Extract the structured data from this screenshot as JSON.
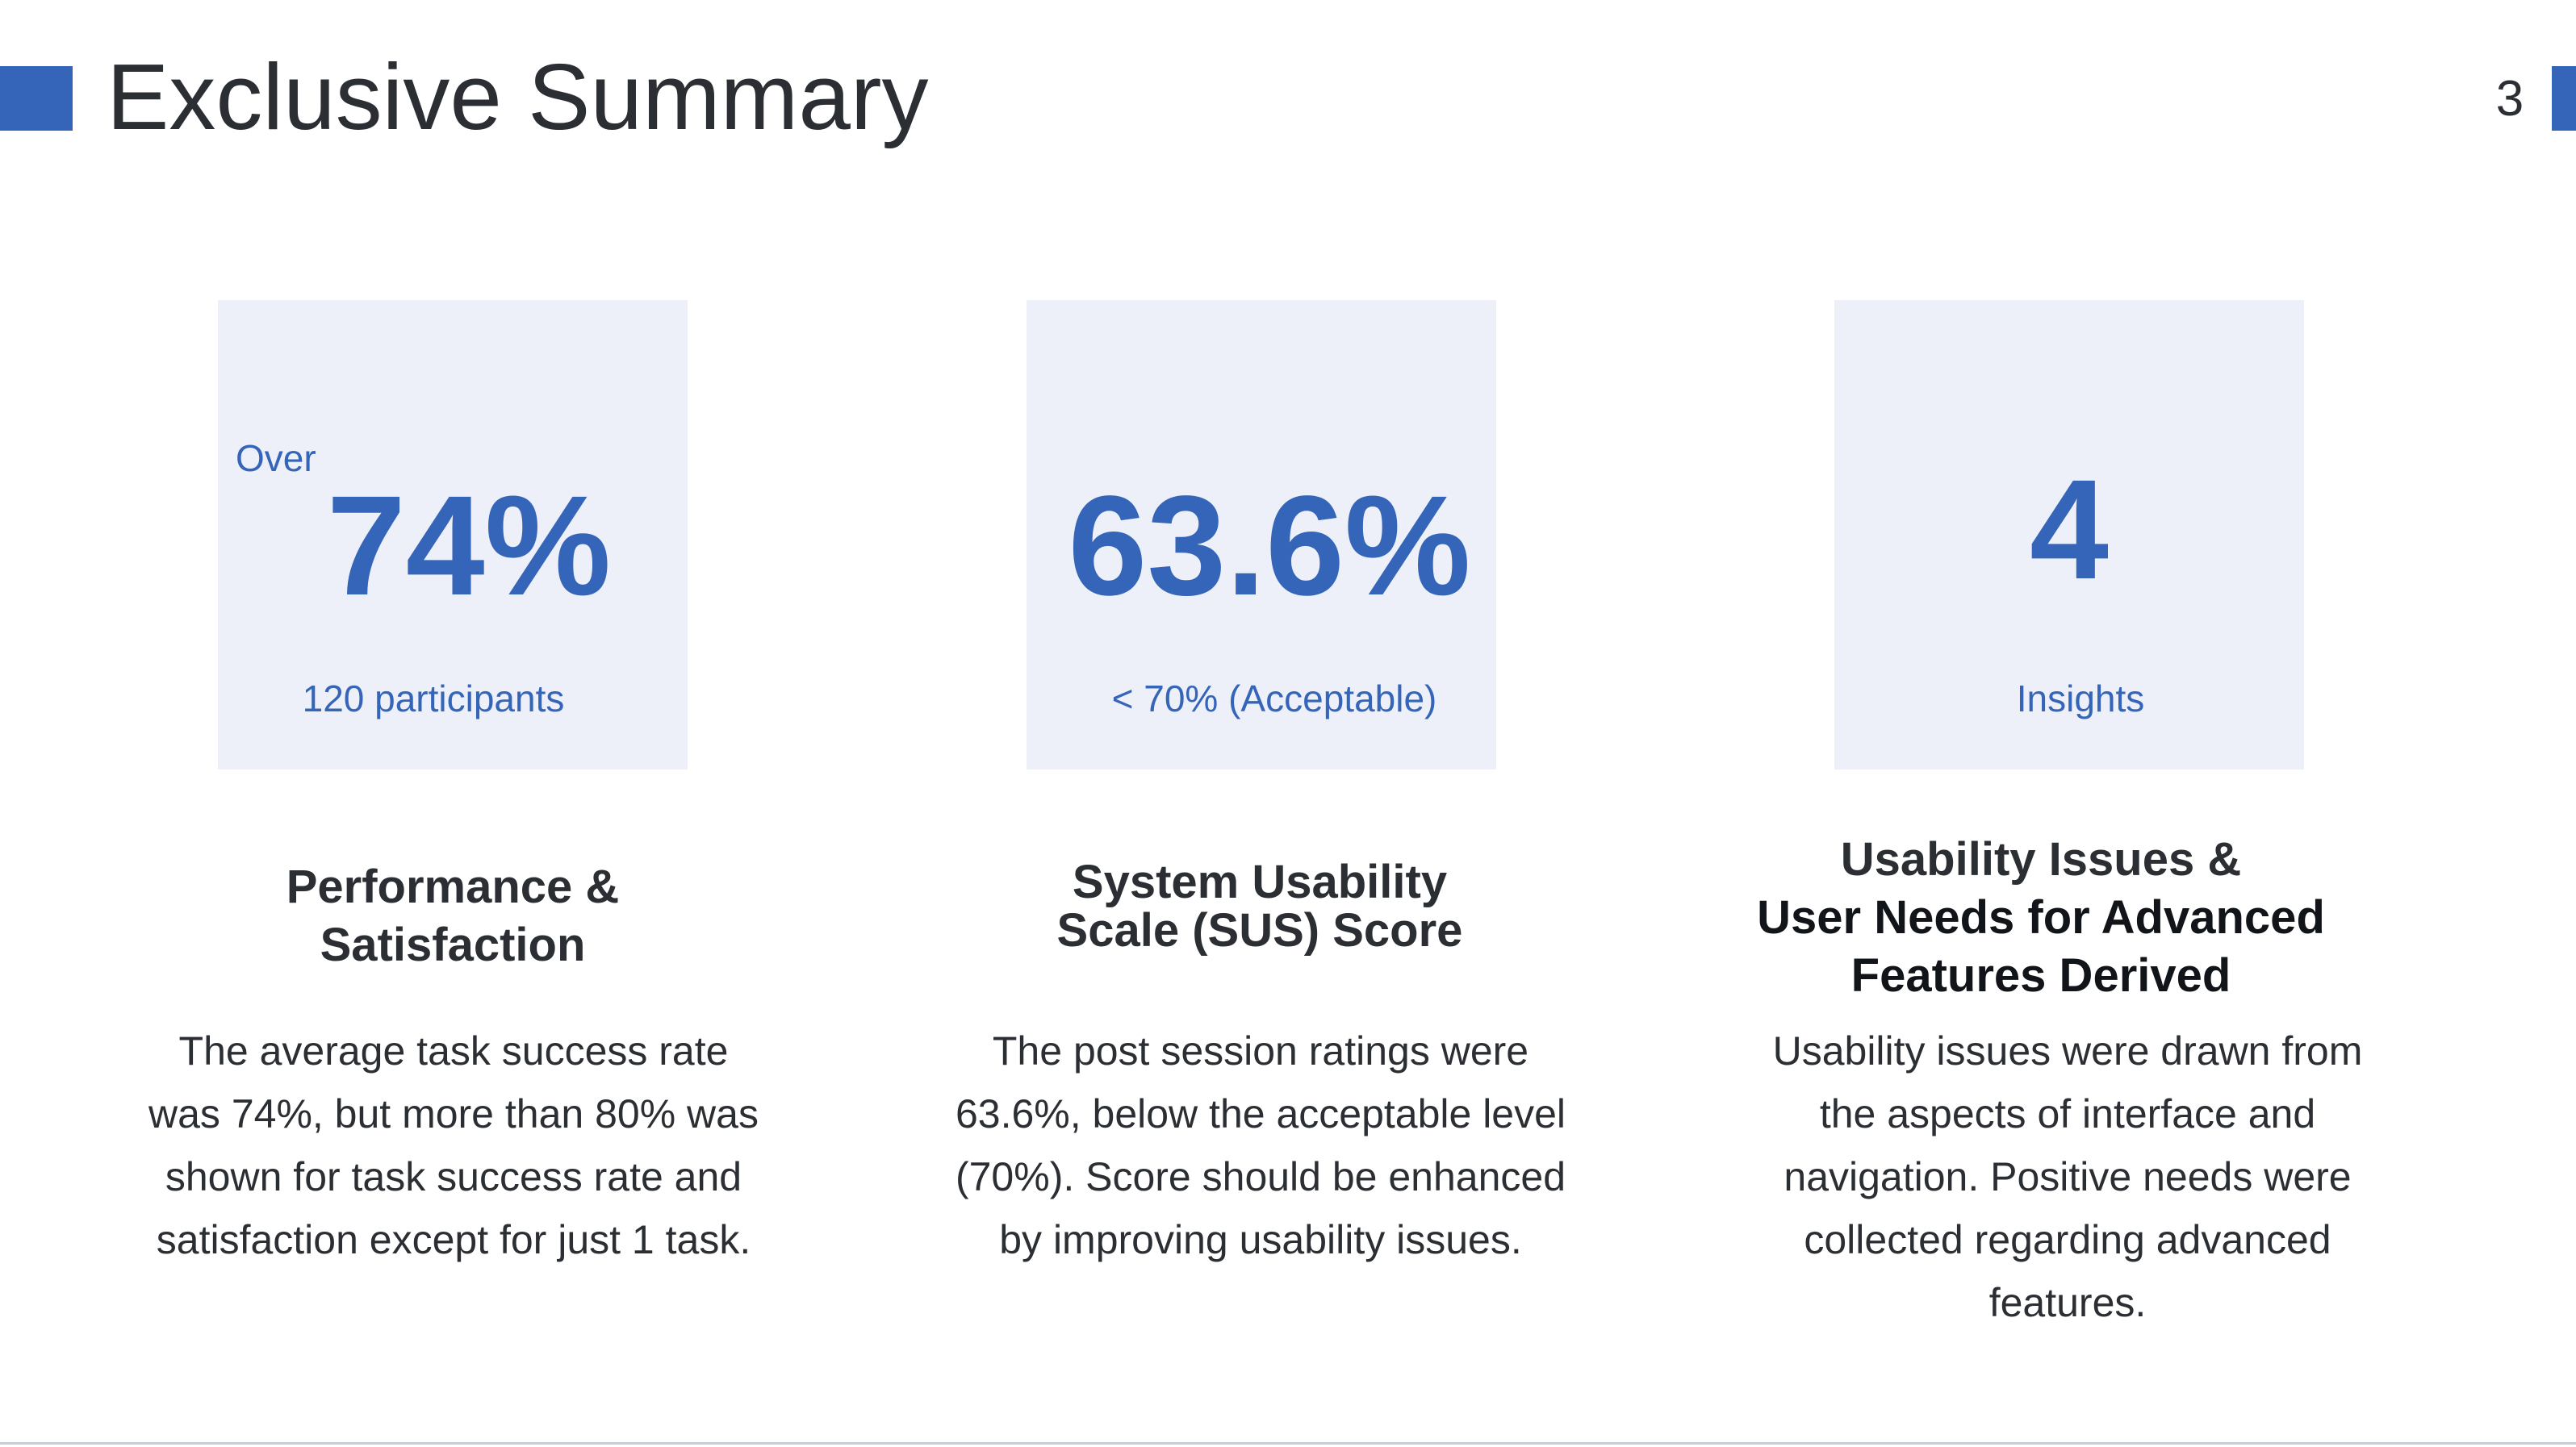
{
  "slide": {
    "title": "Exclusive Summary",
    "page_number": "3",
    "accent_color": "#3565b8",
    "card_background": "#edf0f8",
    "text_color": "#2b2f33"
  },
  "cards": [
    {
      "prefix": "Over",
      "value": "74%",
      "caption": "120 participants",
      "heading_line1": "Performance &",
      "heading_line2": "Satisfaction",
      "body": "The average task success rate was 74%, but more than 80% was shown for task success rate and satisfaction except for just 1 task."
    },
    {
      "value": "63.6%",
      "caption": "< 70% (Acceptable)",
      "heading_line1": "System Usability",
      "heading_line2": "Scale (SUS) Score",
      "body": "The post session ratings were 63.6%, below the acceptable level (70%). Score should be enhanced by improving usability issues."
    },
    {
      "value": "4",
      "caption": "Insights",
      "heading_line1": "Usability Issues &",
      "heading_line2": "User Needs for Advanced",
      "heading_line3": "Features Derived",
      "body": "Usability issues were drawn from the aspects of interface and navigation. Positive needs were collected regarding advanced features."
    }
  ]
}
